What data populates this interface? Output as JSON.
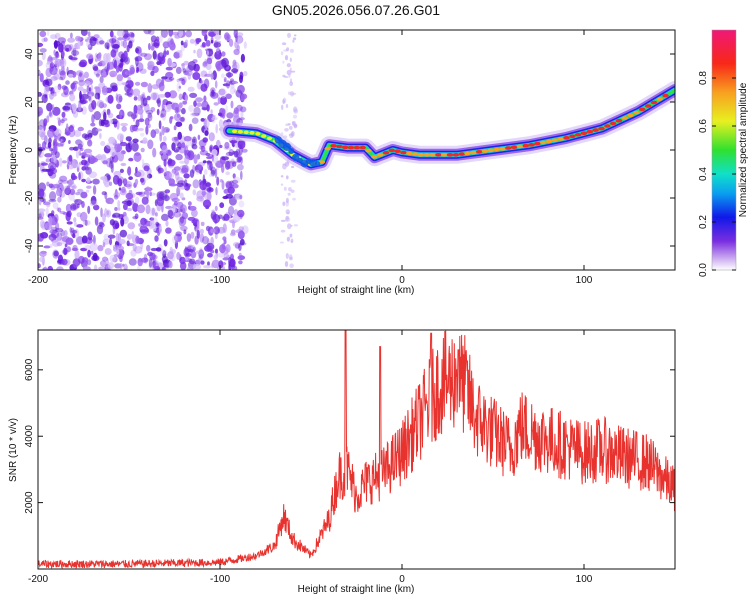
{
  "title": "GN05.2026.056.07.26.G01",
  "chart_data": [
    {
      "type": "heatmap",
      "title": "GN05.2026.056.07.26.G01",
      "xlabel": "Height of straight line (km)",
      "ylabel": "Frequency (Hz)",
      "xlim": [
        -200,
        150
      ],
      "ylim": [
        -50,
        50
      ],
      "xticks": [
        -200,
        -100,
        0,
        100
      ],
      "yticks": [
        -40,
        -20,
        0,
        20,
        40
      ],
      "colorbar": {
        "label": "Normalized spectral amplitude",
        "range": [
          0,
          1
        ],
        "ticks": [
          0.0,
          0.2,
          0.4,
          0.6,
          0.8
        ]
      },
      "noise_region_x": [
        -200,
        -90
      ],
      "ridge": [
        {
          "x": -95,
          "y": 8
        },
        {
          "x": -80,
          "y": 7
        },
        {
          "x": -70,
          "y": 4
        },
        {
          "x": -60,
          "y": -2
        },
        {
          "x": -50,
          "y": -6
        },
        {
          "x": -44,
          "y": -5
        },
        {
          "x": -40,
          "y": 2
        },
        {
          "x": -30,
          "y": 1
        },
        {
          "x": -20,
          "y": 1
        },
        {
          "x": -15,
          "y": -3
        },
        {
          "x": -5,
          "y": 0
        },
        {
          "x": 0,
          "y": -1
        },
        {
          "x": 10,
          "y": -2
        },
        {
          "x": 30,
          "y": -2
        },
        {
          "x": 50,
          "y": 0
        },
        {
          "x": 70,
          "y": 2
        },
        {
          "x": 90,
          "y": 5
        },
        {
          "x": 110,
          "y": 9
        },
        {
          "x": 130,
          "y": 16
        },
        {
          "x": 150,
          "y": 25
        }
      ]
    },
    {
      "type": "line",
      "xlabel": "Height of straight line (km)",
      "ylabel": "SNR (10 * v/v)",
      "xlim": [
        -200,
        150
      ],
      "ylim": [
        0,
        7200
      ],
      "xticks": [
        -200,
        -100,
        0,
        100
      ],
      "yticks": [
        2000,
        4000,
        6000
      ],
      "series": [
        {
          "name": "SNR",
          "color": "#e8322e",
          "envelope": [
            {
              "x": -200,
              "y": 150
            },
            {
              "x": -150,
              "y": 150
            },
            {
              "x": -100,
              "y": 200
            },
            {
              "x": -80,
              "y": 400
            },
            {
              "x": -70,
              "y": 700
            },
            {
              "x": -65,
              "y": 1600
            },
            {
              "x": -60,
              "y": 900
            },
            {
              "x": -50,
              "y": 400
            },
            {
              "x": -40,
              "y": 1500
            },
            {
              "x": -35,
              "y": 2800
            },
            {
              "x": -30,
              "y": 3000
            },
            {
              "x": -25,
              "y": 2200
            },
            {
              "x": -20,
              "y": 2600
            },
            {
              "x": -10,
              "y": 2900
            },
            {
              "x": 0,
              "y": 3500
            },
            {
              "x": 10,
              "y": 4500
            },
            {
              "x": 20,
              "y": 5500
            },
            {
              "x": 30,
              "y": 5800
            },
            {
              "x": 35,
              "y": 5500
            },
            {
              "x": 40,
              "y": 4600
            },
            {
              "x": 50,
              "y": 4100
            },
            {
              "x": 60,
              "y": 3600
            },
            {
              "x": 65,
              "y": 4300
            },
            {
              "x": 75,
              "y": 4000
            },
            {
              "x": 90,
              "y": 3700
            },
            {
              "x": 100,
              "y": 3500
            },
            {
              "x": 110,
              "y": 3600
            },
            {
              "x": 120,
              "y": 3400
            },
            {
              "x": 135,
              "y": 3200
            },
            {
              "x": 150,
              "y": 2400
            }
          ],
          "spikes": [
            {
              "x": -31,
              "y": 7200
            },
            {
              "x": -12,
              "y": 6700
            },
            {
              "x": 16,
              "y": 7100
            },
            {
              "x": 31,
              "y": 6600
            }
          ]
        }
      ]
    }
  ]
}
